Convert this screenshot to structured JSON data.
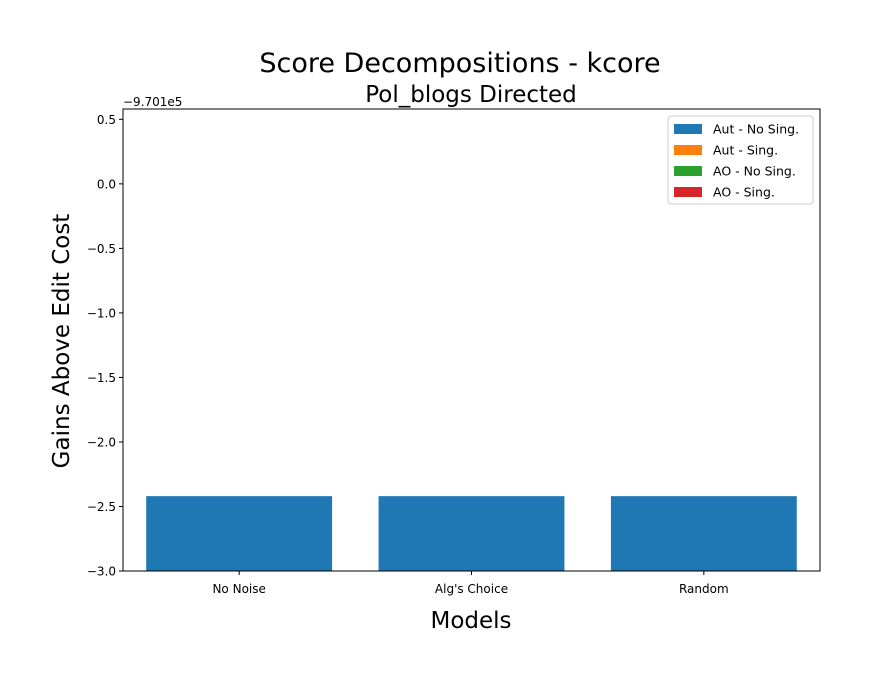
{
  "chart_data": {
    "type": "bar",
    "title": "Score Decompositions - kcore",
    "subtitle": "Pol_blogs Directed",
    "xlabel": "Models",
    "ylabel": "Gains Above Edit Cost",
    "offset_label": "−9.701e5",
    "categories": [
      "No Noise",
      "Alg's Choice",
      "Random"
    ],
    "ylim": [
      -3.0,
      0.58
    ],
    "yticks": [
      0.5,
      0.0,
      -0.5,
      -1.0,
      -1.5,
      -2.0,
      -2.5,
      -3.0
    ],
    "ytick_labels": [
      "0.5",
      "0.0",
      "−0.5",
      "−1.0",
      "−1.5",
      "−2.0",
      "−2.5",
      "−3.0"
    ],
    "series": [
      {
        "name": "Aut - No Sing.",
        "color": "#1f77b4",
        "values": [
          0.58,
          0.58,
          0.58
        ]
      },
      {
        "name": "Aut - Sing.",
        "color": "#ff7f0e",
        "values": [
          0,
          0,
          0
        ]
      },
      {
        "name": "AO - No Sing.",
        "color": "#2ca02c",
        "values": [
          0,
          0,
          0
        ]
      },
      {
        "name": "AO - Sing.",
        "color": "#d62728",
        "values": [
          0,
          0,
          0
        ]
      }
    ],
    "legend_position": "top-right",
    "grid": false
  }
}
